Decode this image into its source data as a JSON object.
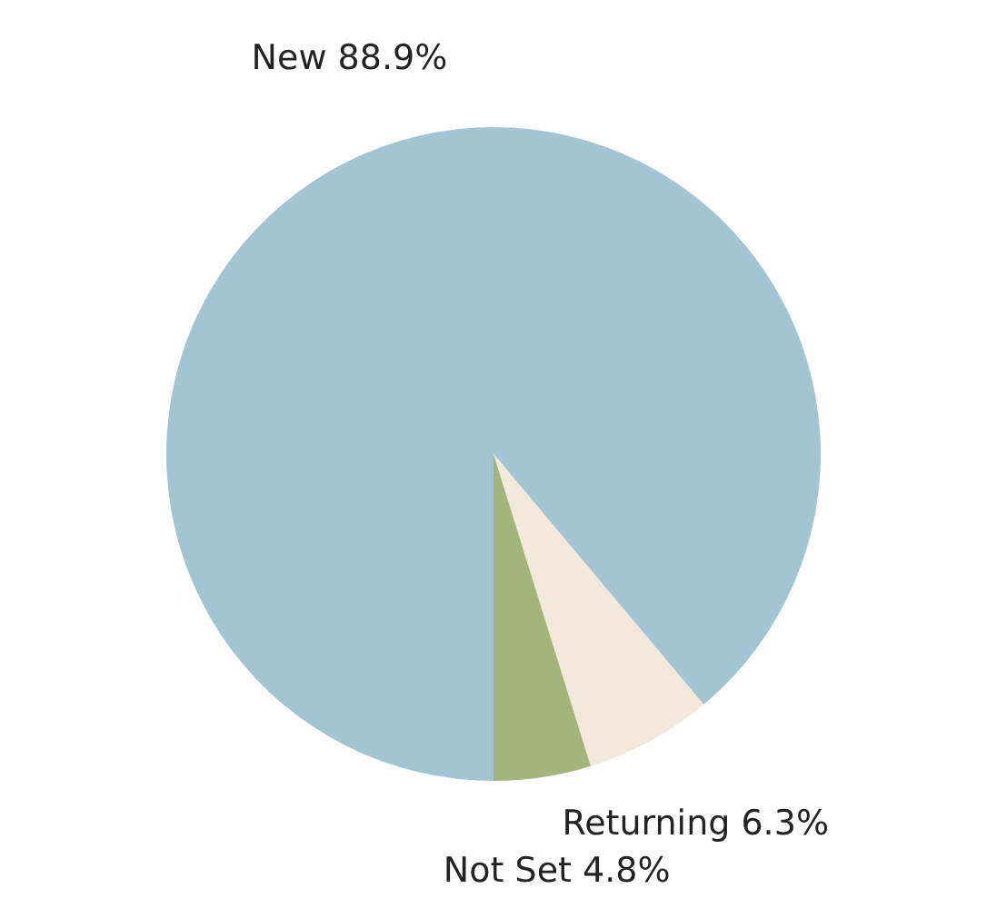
{
  "chart_data": {
    "type": "pie",
    "categories": [
      "New",
      "Returning",
      "Not Set"
    ],
    "values": [
      88.9,
      6.3,
      4.8
    ],
    "value_labels": [
      "88.9%",
      "6.3%",
      "4.8%"
    ],
    "colors": [
      "#a3c4d3",
      "#f3e8dc",
      "#a4b57c"
    ]
  }
}
